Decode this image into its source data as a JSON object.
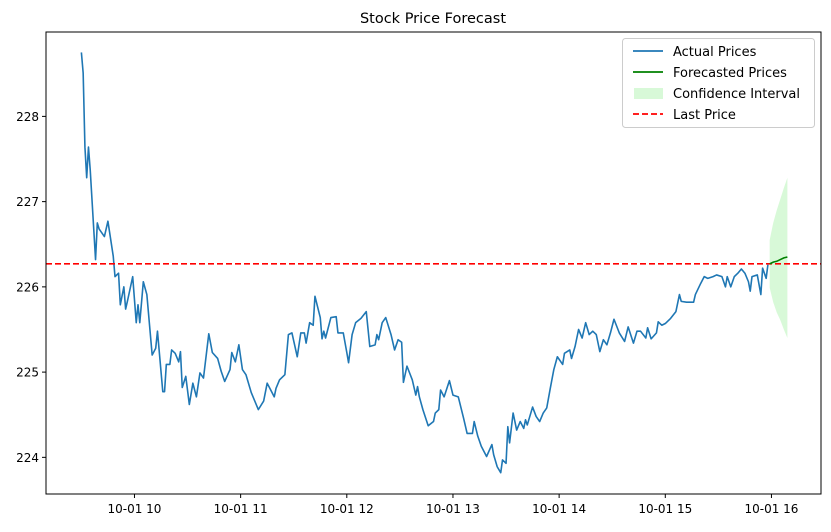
{
  "chart_data": {
    "type": "line",
    "title": "Stock Price Forecast",
    "xlabel": "",
    "ylabel": "",
    "date": "10-01",
    "xlim": [
      "09:10",
      "16:28"
    ],
    "ylim": [
      223.57,
      228.99
    ],
    "grid": false,
    "legend_position": "top-right",
    "x_ticks": [
      {
        "time": "10:00",
        "label": "10-01 10"
      },
      {
        "time": "11:00",
        "label": "10-01 11"
      },
      {
        "time": "12:00",
        "label": "10-01 12"
      },
      {
        "time": "13:00",
        "label": "10-01 13"
      },
      {
        "time": "14:00",
        "label": "10-01 14"
      },
      {
        "time": "15:00",
        "label": "10-01 15"
      },
      {
        "time": "16:00",
        "label": "10-01 16"
      }
    ],
    "y_ticks": [
      224,
      225,
      226,
      227,
      228
    ],
    "series": [
      {
        "name": "Actual Prices",
        "color": "#1f77b4",
        "times": [
          "09:30",
          "09:31",
          "09:32",
          "09:33",
          "09:34",
          "09:35",
          "09:38",
          "09:39",
          "09:40",
          "09:43",
          "09:45",
          "09:48",
          "09:49",
          "09:51",
          "09:52",
          "09:54",
          "09:55",
          "09:56",
          "09:59",
          "10:01",
          "10:02",
          "10:03",
          "10:05",
          "10:07",
          "10:10",
          "10:12",
          "10:13",
          "10:16",
          "10:17",
          "10:18",
          "10:20",
          "10:21",
          "10:23",
          "10:25",
          "10:26",
          "10:27",
          "10:29",
          "10:31",
          "10:33",
          "10:35",
          "10:37",
          "10:39",
          "10:42",
          "10:44",
          "10:47",
          "10:49",
          "10:51",
          "10:54",
          "10:55",
          "10:57",
          "10:59",
          "11:01",
          "11:03",
          "11:06",
          "11:10",
          "11:13",
          "11:15",
          "11:17",
          "11:19",
          "11:20",
          "11:22",
          "11:25",
          "11:27",
          "11:29",
          "11:32",
          "11:34",
          "11:36",
          "11:37",
          "11:39",
          "11:41",
          "11:42",
          "11:45",
          "11:46",
          "11:47",
          "11:48",
          "11:51",
          "11:54",
          "11:55",
          "11:58",
          "12:00",
          "12:01",
          "12:03",
          "12:05",
          "12:08",
          "12:11",
          "12:13",
          "12:16",
          "12:17",
          "12:18",
          "12:20",
          "12:22",
          "12:25",
          "12:27",
          "12:29",
          "12:31",
          "12:32",
          "12:34",
          "12:37",
          "12:39",
          "12:40",
          "12:41",
          "12:43",
          "12:46",
          "12:49",
          "12:50",
          "12:52",
          "12:53",
          "12:55",
          "12:58",
          "13:00",
          "13:03",
          "13:06",
          "13:08",
          "13:11",
          "13:12",
          "13:14",
          "13:16",
          "13:19",
          "13:22",
          "13:23",
          "13:25",
          "13:27",
          "13:28",
          "13:30",
          "13:31",
          "13:32",
          "13:34",
          "13:36",
          "13:38",
          "13:40",
          "13:41",
          "13:42",
          "13:45",
          "13:47",
          "13:49",
          "13:51",
          "13:53",
          "13:55",
          "13:57",
          "13:59",
          "14:02",
          "14:03",
          "14:06",
          "14:07",
          "14:09",
          "14:11",
          "14:13",
          "14:15",
          "14:17",
          "14:19",
          "14:21",
          "14:23",
          "14:25",
          "14:27",
          "14:29",
          "14:31",
          "14:34",
          "14:37",
          "14:39",
          "14:42",
          "14:44",
          "14:46",
          "14:49",
          "14:50",
          "14:52",
          "14:55",
          "14:56",
          "14:58",
          "15:00",
          "15:03",
          "15:06",
          "15:08",
          "15:09",
          "15:12",
          "15:16",
          "15:17",
          "15:20",
          "15:22",
          "15:24",
          "15:27",
          "15:29",
          "15:32",
          "15:34",
          "15:35",
          "15:37",
          "15:39",
          "15:41",
          "15:43",
          "15:45",
          "15:47",
          "15:48",
          "15:49",
          "15:52",
          "15:54",
          "15:55",
          "15:57",
          "15:58"
        ],
        "values": [
          228.75,
          228.51,
          227.64,
          227.28,
          227.64,
          227.37,
          226.32,
          226.75,
          226.68,
          226.59,
          226.77,
          226.36,
          226.12,
          226.16,
          225.79,
          226.0,
          225.74,
          225.83,
          226.12,
          225.58,
          225.79,
          225.58,
          226.06,
          225.91,
          225.2,
          225.28,
          225.48,
          224.77,
          224.77,
          225.09,
          225.09,
          225.26,
          225.22,
          225.12,
          225.24,
          224.82,
          224.95,
          224.62,
          224.87,
          224.71,
          224.99,
          224.93,
          225.45,
          225.23,
          225.16,
          225.01,
          224.89,
          225.03,
          225.23,
          225.12,
          225.32,
          225.03,
          224.97,
          224.76,
          224.56,
          224.66,
          224.87,
          224.79,
          224.71,
          224.81,
          224.91,
          224.97,
          225.44,
          225.46,
          225.18,
          225.46,
          225.46,
          225.34,
          225.58,
          225.55,
          225.89,
          225.64,
          225.39,
          225.48,
          225.4,
          225.64,
          225.65,
          225.46,
          225.46,
          225.23,
          225.11,
          225.44,
          225.58,
          225.63,
          225.71,
          225.3,
          225.32,
          225.44,
          225.38,
          225.58,
          225.64,
          225.44,
          225.26,
          225.38,
          225.35,
          224.88,
          225.07,
          224.91,
          224.73,
          224.83,
          224.71,
          224.56,
          224.37,
          224.42,
          224.52,
          224.56,
          224.79,
          224.71,
          224.9,
          224.73,
          224.71,
          224.46,
          224.28,
          224.28,
          224.42,
          224.25,
          224.13,
          224.01,
          224.15,
          224.03,
          223.89,
          223.82,
          223.97,
          223.93,
          224.36,
          224.17,
          224.52,
          224.32,
          224.42,
          224.34,
          224.44,
          224.38,
          224.59,
          224.48,
          224.42,
          224.52,
          224.58,
          224.81,
          225.03,
          225.18,
          225.09,
          225.22,
          225.26,
          225.16,
          225.3,
          225.5,
          225.4,
          225.58,
          225.44,
          225.48,
          225.44,
          225.24,
          225.38,
          225.32,
          225.46,
          225.62,
          225.46,
          225.36,
          225.53,
          225.34,
          225.48,
          225.48,
          225.4,
          225.52,
          225.39,
          225.46,
          225.59,
          225.55,
          225.57,
          225.63,
          225.71,
          225.91,
          225.83,
          225.82,
          225.82,
          225.91,
          226.04,
          226.12,
          226.1,
          226.12,
          226.14,
          226.12,
          226.0,
          226.12,
          226.0,
          226.12,
          226.16,
          226.21,
          226.16,
          226.06,
          225.95,
          226.12,
          226.14,
          225.91,
          226.22,
          226.1,
          226.26
        ]
      },
      {
        "name": "Forecasted Prices",
        "color": "#008000",
        "times": [
          "15:59",
          "16:01",
          "16:03",
          "16:05",
          "16:07",
          "16:09"
        ],
        "values": [
          226.27,
          226.29,
          226.3,
          226.32,
          226.34,
          226.35
        ]
      },
      {
        "name": "Confidence Interval",
        "color": "#90ee90",
        "times": [
          "15:59",
          "16:01",
          "16:03",
          "16:05",
          "16:07",
          "16:09"
        ],
        "upper": [
          226.55,
          226.75,
          226.9,
          227.03,
          227.16,
          227.28
        ],
        "lower": [
          225.99,
          225.82,
          225.7,
          225.61,
          225.5,
          225.4
        ]
      },
      {
        "name": "Last Price",
        "color": "#ff0000",
        "value": 226.27
      }
    ]
  }
}
